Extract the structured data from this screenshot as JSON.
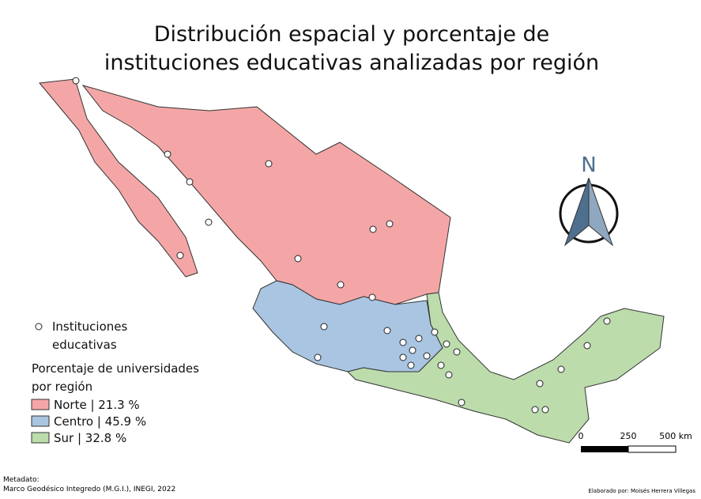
{
  "title": [
    "Distribución espacial y porcentaje de",
    "instituciones educativas analizadas por región"
  ],
  "legend": {
    "marker": [
      "Instituciones",
      "educativas"
    ],
    "heading": [
      "Porcentaje de universidades",
      "por región"
    ],
    "regions": [
      {
        "label": "Norte | 21.3 %",
        "color": "#f4a6a6"
      },
      {
        "label": "Centro | 45.9 %",
        "color": "#a9c5e1"
      },
      {
        "label": "Sur | 32.8 %",
        "color": "#bcdcac"
      }
    ]
  },
  "north": "N",
  "scale": [
    "0",
    "250",
    "500 km"
  ],
  "metadata": [
    "Metadato:",
    "Marco Geodésico Integredo (M.G.I.), INEGI, 2022"
  ],
  "credit": "Elaborado por: Moisés Herrera Villegas"
}
